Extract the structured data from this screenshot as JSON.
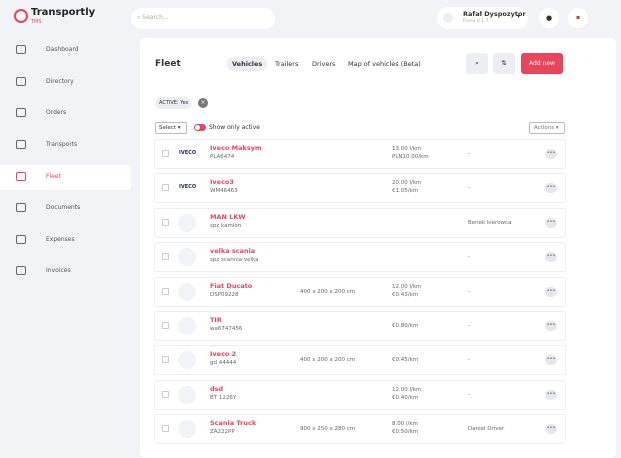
{
  "header": {
    "logo": "Transportly",
    "logo_sub": "TMS",
    "search_placeholder": "Search...",
    "user_name": "Rafał Dyspozytor",
    "user_company": "Firma 0.1.7"
  },
  "sidebar": [
    "Dashboard",
    "Directory",
    "Orders",
    "Transports",
    "Fleet",
    "Documents",
    "Expenses",
    "Invoices"
  ],
  "sidebar_active": "Fleet",
  "page": {
    "title": "Fleet",
    "tabs": [
      "Vehicles",
      "Trailers",
      "Drivers",
      "Map of vehicles (Beta)"
    ],
    "active_tab": "Vehicles",
    "add_button": "Add new",
    "filter_chip": "ACTIVE: Yes",
    "select": "Select",
    "toggle_label": "Show only active",
    "actions": "Actions"
  },
  "rows": [
    {
      "logo": "IVECO",
      "name": "Iveco Maksym",
      "plate": "PLA6474",
      "dimensions": "",
      "rates": [
        "13.00 l/km",
        "PLN10.00/km"
      ],
      "driver": "-"
    },
    {
      "logo": "IVECO",
      "name": "Iveco3",
      "plate": "WM46463",
      "dimensions": "",
      "rates": [
        "20.00 l/km",
        "€1.05/km"
      ],
      "driver": "-"
    },
    {
      "logo": "",
      "name": "MAN LKW",
      "plate": "spz kamion",
      "dimensions": "",
      "rates": [],
      "driver": "Benek kierowca"
    },
    {
      "logo": "",
      "name": "velka scania",
      "plate": "spz scannia velka",
      "dimensions": "",
      "rates": [],
      "driver": "-"
    },
    {
      "logo": "",
      "name": "Fiat Ducato",
      "plate": "DSP09228",
      "dimensions": "400 x 200 x 200 cm",
      "rates": [
        "12.00 l/km",
        "€0.43/km"
      ],
      "driver": "-"
    },
    {
      "logo": "",
      "name": "TIR",
      "plate": "wa6747456",
      "dimensions": "",
      "rates": [
        "€0.80/km"
      ],
      "driver": "-"
    },
    {
      "logo": "",
      "name": "Iveco 2",
      "plate": "gd 44444",
      "dimensions": "400 x 200 x 200 cm",
      "rates": [
        "€0.45/km"
      ],
      "driver": "-"
    },
    {
      "logo": "",
      "name": "dsd",
      "plate": "BT 1226Y",
      "dimensions": "",
      "rates": [
        "12.00 l/km",
        "€0.40/km"
      ],
      "driver": "-"
    },
    {
      "logo": "",
      "name": "Scania Truck",
      "plate": "ZA222PP",
      "dimensions": "900 x 250 x 280 cm",
      "rates": [
        "8.00 l/km",
        "€0.50/km"
      ],
      "driver": "Daniel Driver"
    }
  ]
}
